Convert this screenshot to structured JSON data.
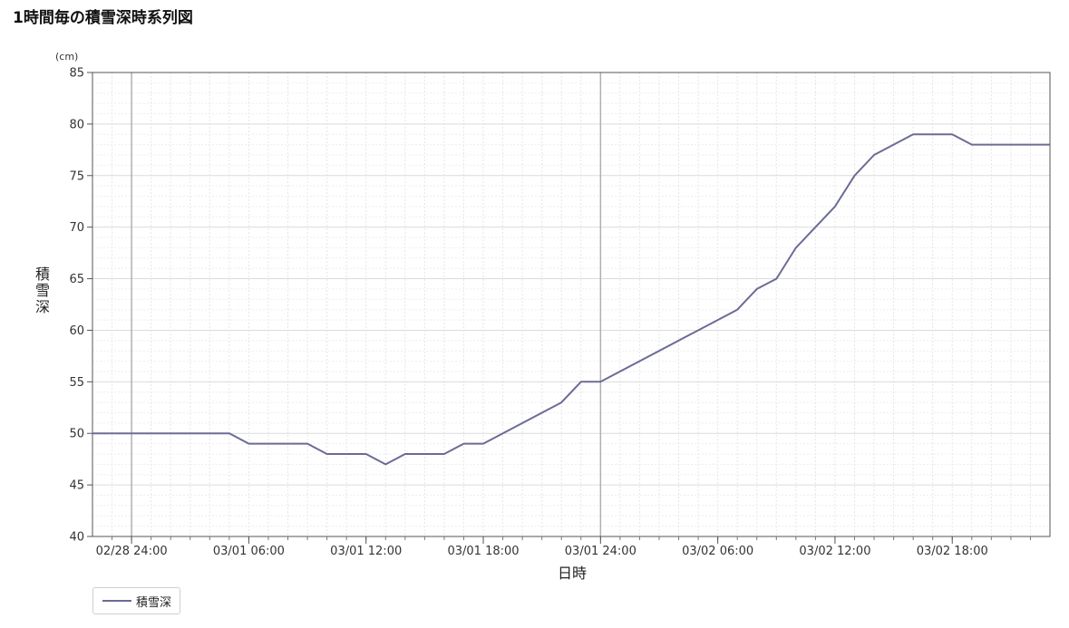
{
  "page": {
    "title": "1時間毎の積雪深時系列図"
  },
  "chart_data": {
    "type": "line",
    "title": "1時間毎の積雪深時系列図",
    "xlabel": "日時",
    "ylabel": "積雪深",
    "yunit": "(cm)",
    "ylim": [
      40,
      85
    ],
    "yticks": [
      40,
      45,
      50,
      55,
      60,
      65,
      70,
      75,
      80,
      85
    ],
    "xlim": [
      "2025-02-28 22:00",
      "2025-03-02 23:00"
    ],
    "xtick_labels": [
      {
        "t": "2025-03-01 00:00",
        "label": "02/28 24:00"
      },
      {
        "t": "2025-03-01 06:00",
        "label": "03/01 06:00"
      },
      {
        "t": "2025-03-01 12:00",
        "label": "03/01 12:00"
      },
      {
        "t": "2025-03-01 18:00",
        "label": "03/01 18:00"
      },
      {
        "t": "2025-03-02 00:00",
        "label": "03/01 24:00"
      },
      {
        "t": "2025-03-02 06:00",
        "label": "03/02 06:00"
      },
      {
        "t": "2025-03-02 12:00",
        "label": "03/02 12:00"
      },
      {
        "t": "2025-03-02 18:00",
        "label": "03/02 18:00"
      }
    ],
    "grid": true,
    "legend_position": "bottom-left",
    "series": [
      {
        "name": "積雪深",
        "color": "#6b6b96",
        "points": [
          {
            "t": "2025-02-28 22:00",
            "y": 50
          },
          {
            "t": "2025-03-01 05:00",
            "y": 50
          },
          {
            "t": "2025-03-01 06:00",
            "y": 49
          },
          {
            "t": "2025-03-01 09:00",
            "y": 49
          },
          {
            "t": "2025-03-01 10:00",
            "y": 48
          },
          {
            "t": "2025-03-01 12:00",
            "y": 48
          },
          {
            "t": "2025-03-01 13:00",
            "y": 47
          },
          {
            "t": "2025-03-01 14:00",
            "y": 48
          },
          {
            "t": "2025-03-01 16:00",
            "y": 48
          },
          {
            "t": "2025-03-01 17:00",
            "y": 49
          },
          {
            "t": "2025-03-01 18:00",
            "y": 49
          },
          {
            "t": "2025-03-01 22:00",
            "y": 53
          },
          {
            "t": "2025-03-01 23:00",
            "y": 55
          },
          {
            "t": "2025-03-02 00:00",
            "y": 55
          },
          {
            "t": "2025-03-02 07:00",
            "y": 62
          },
          {
            "t": "2025-03-02 08:00",
            "y": 64
          },
          {
            "t": "2025-03-02 09:00",
            "y": 65
          },
          {
            "t": "2025-03-02 10:00",
            "y": 68
          },
          {
            "t": "2025-03-02 12:00",
            "y": 72
          },
          {
            "t": "2025-03-02 13:00",
            "y": 75
          },
          {
            "t": "2025-03-02 14:00",
            "y": 77
          },
          {
            "t": "2025-03-02 16:00",
            "y": 79
          },
          {
            "t": "2025-03-02 18:00",
            "y": 79
          },
          {
            "t": "2025-03-02 19:00",
            "y": 78
          },
          {
            "t": "2025-03-02 23:00",
            "y": 78
          }
        ]
      }
    ]
  }
}
